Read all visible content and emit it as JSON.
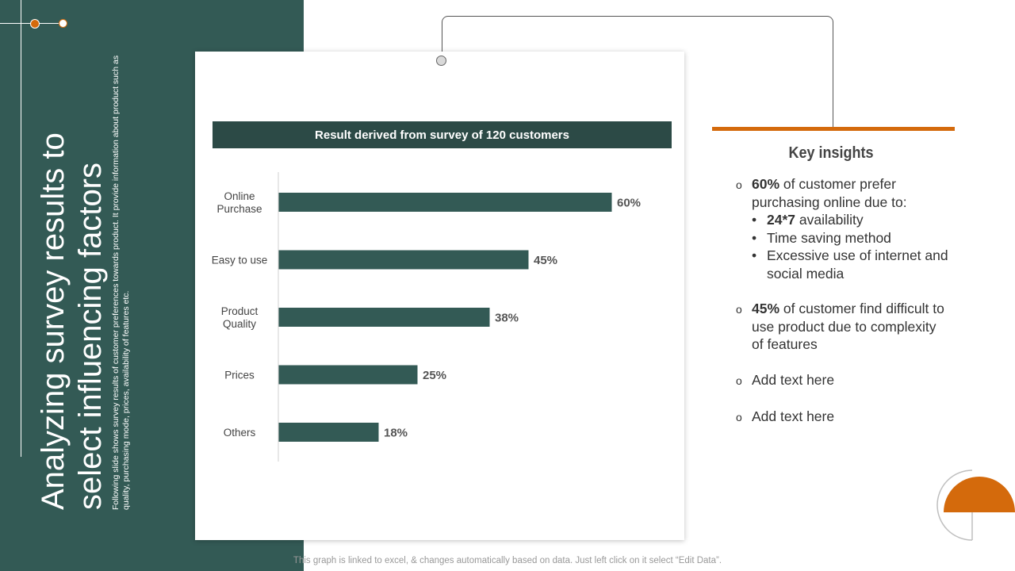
{
  "slide": {
    "title": "Analyzing survey results to select influencing factors",
    "subtitle": "Following slide shows survey results of customer preferences towards product. It provide information about product such as quality, purchasing mode, prices, availability of features etc."
  },
  "chart_data": {
    "type": "bar",
    "orientation": "horizontal",
    "title": "Result derived from survey of 120 customers",
    "categories": [
      "Online Purchase",
      "Easy to use",
      "Product Quality",
      "Prices",
      "Others"
    ],
    "values": [
      60,
      45,
      38,
      25,
      18
    ],
    "value_labels": [
      "60%",
      "45%",
      "38%",
      "25%",
      "18%"
    ],
    "unit": "%",
    "xlim": [
      0,
      70
    ],
    "grid": false,
    "bar_color": "#335a55"
  },
  "insights": {
    "title": "Key insights",
    "item1": {
      "bold": "60%",
      "text": " of customer prefer purchasing online due to:",
      "subs": [
        {
          "bold": "24*7",
          "text": " availability"
        },
        {
          "bold": "",
          "text": "Time saving method"
        },
        {
          "bold": "",
          "text": "Excessive use of internet and social media"
        }
      ]
    },
    "item2": {
      "bold": "45%",
      "text": " of customer find difficult to use product due to complexity of features"
    },
    "item3": {
      "text": "Add text here"
    },
    "item4": {
      "text": "Add text here"
    },
    "marker": "o",
    "sub_marker": "•"
  },
  "footer": {
    "note": "This graph is linked to excel, & changes automatically based on data. Just left click on it select “Edit Data”."
  },
  "colors": {
    "sidebar": "#335a55",
    "header": "#2c4a46",
    "accent": "#d46a0c"
  }
}
